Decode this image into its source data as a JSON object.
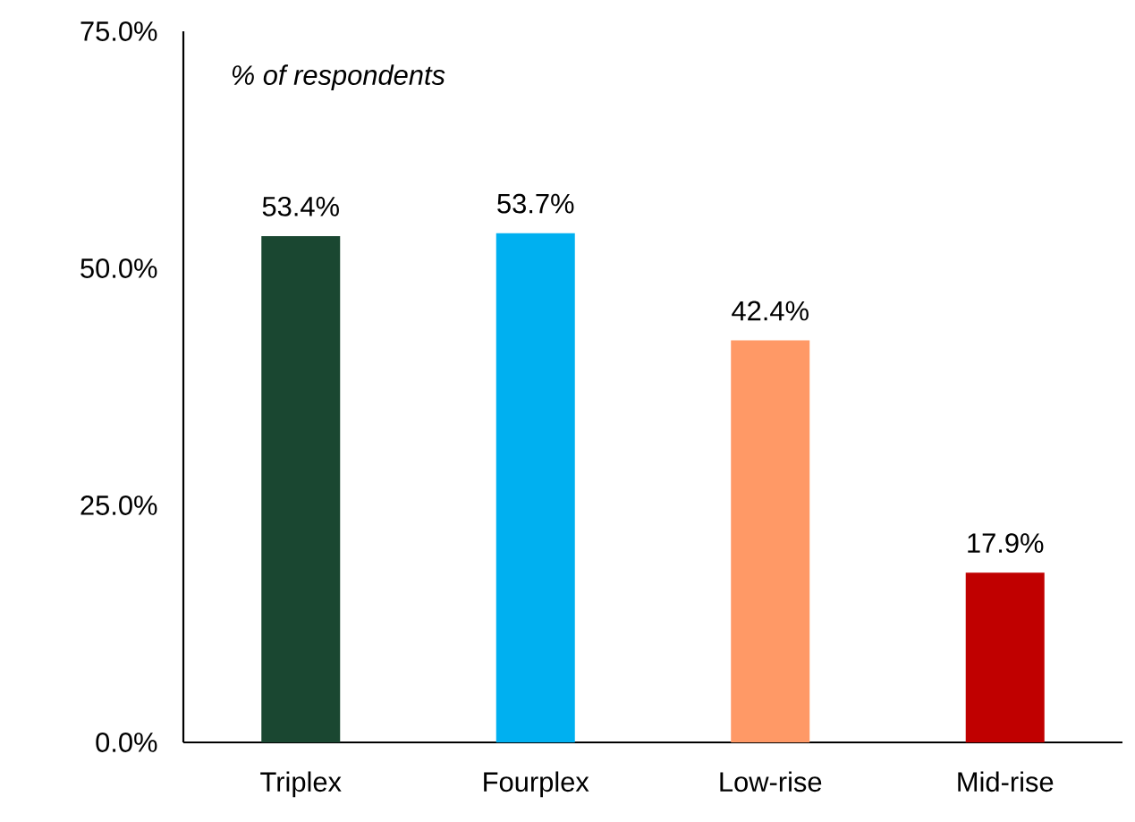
{
  "chart_data": {
    "type": "bar",
    "categories": [
      "Triplex",
      "Fourplex",
      "Low-rise",
      "Mid-rise"
    ],
    "values": [
      53.4,
      53.7,
      42.4,
      17.9
    ],
    "colors": [
      "#1a4731",
      "#00b0f0",
      "#ff9966",
      "#c00000"
    ],
    "value_labels": [
      "53.4%",
      "53.7%",
      "42.4%",
      "17.9%"
    ],
    "ylim": [
      0,
      75
    ],
    "yticks": [
      {
        "value": 0,
        "label": "0.0%"
      },
      {
        "value": 25,
        "label": "25.0%"
      },
      {
        "value": 50,
        "label": "50.0%"
      },
      {
        "value": 75,
        "label": "75.0%"
      }
    ],
    "annotations": [
      "% of respondents"
    ]
  }
}
